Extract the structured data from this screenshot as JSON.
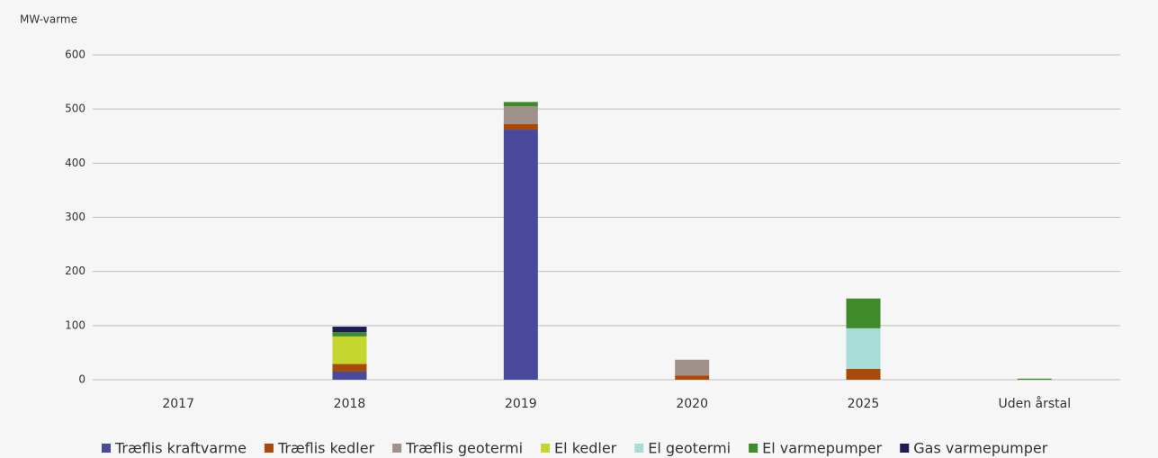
{
  "chart_data": {
    "type": "stacked_bar",
    "y_axis_label": "MW-varme",
    "categories": [
      "2017",
      "2018",
      "2019",
      "2020",
      "2025",
      "Uden årstal"
    ],
    "series": [
      {
        "name": "Træflis kraftvarme",
        "color": "#4a4a9c",
        "values": [
          0,
          15,
          462,
          0,
          0,
          0
        ]
      },
      {
        "name": "Træflis kedler",
        "color": "#a84a0a",
        "values": [
          0,
          14,
          10,
          8,
          20,
          0
        ]
      },
      {
        "name": "Træflis geotermi",
        "color": "#a0918a",
        "values": [
          0,
          0,
          33,
          29,
          0,
          0
        ]
      },
      {
        "name": "El kedler",
        "color": "#c5d62e",
        "values": [
          0,
          51,
          0,
          0,
          0,
          0
        ]
      },
      {
        "name": "El geotermi",
        "color": "#a8dcd6",
        "values": [
          0,
          0,
          0,
          0,
          75,
          0
        ]
      },
      {
        "name": "El varmepumper",
        "color": "#3f8a2a",
        "values": [
          0,
          8,
          8,
          0,
          55,
          2
        ]
      },
      {
        "name": "Gas varmepumper",
        "color": "#1e1a5a",
        "values": [
          0,
          10,
          0,
          0,
          0,
          0
        ]
      }
    ],
    "ylim": [
      0,
      600
    ],
    "yticks": [
      0,
      100,
      200,
      300,
      400,
      500,
      600
    ],
    "grid": true
  }
}
